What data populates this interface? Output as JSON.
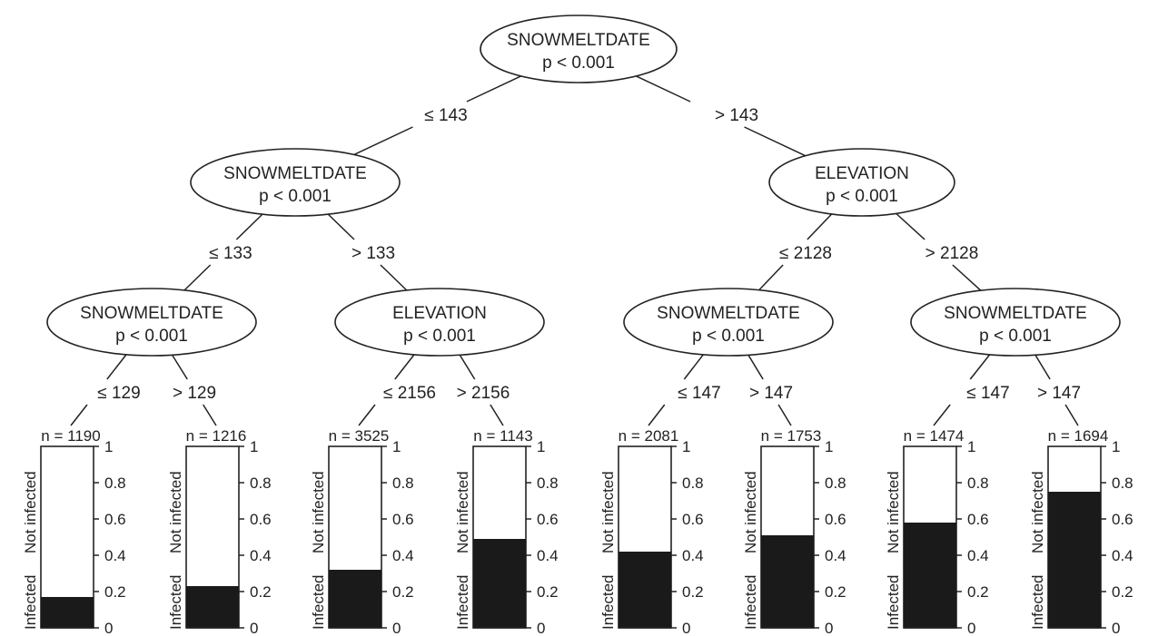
{
  "tree": {
    "nodes": [
      {
        "id": "n1",
        "variable": "SNOWMELTDATE",
        "p": "p < 0.001"
      },
      {
        "id": "n2",
        "variable": "SNOWMELTDATE",
        "p": "p < 0.001"
      },
      {
        "id": "n3",
        "variable": "ELEVATION",
        "p": "p < 0.001"
      },
      {
        "id": "n4",
        "variable": "SNOWMELTDATE",
        "p": "p < 0.001"
      },
      {
        "id": "n5",
        "variable": "ELEVATION",
        "p": "p < 0.001"
      },
      {
        "id": "n6",
        "variable": "SNOWMELTDATE",
        "p": "p < 0.001"
      },
      {
        "id": "n7",
        "variable": "SNOWMELTDATE",
        "p": "p < 0.001"
      }
    ],
    "edges": [
      {
        "from": "n1",
        "to": "n2",
        "label": "≤ 143"
      },
      {
        "from": "n1",
        "to": "n3",
        "label": "> 143"
      },
      {
        "from": "n2",
        "to": "n4",
        "label": "≤ 133"
      },
      {
        "from": "n2",
        "to": "n5",
        "label": "> 133"
      },
      {
        "from": "n3",
        "to": "n6",
        "label": "≤ 2128"
      },
      {
        "from": "n3",
        "to": "n7",
        "label": "> 2128"
      },
      {
        "from": "n4",
        "to": "l1",
        "label": "≤ 129"
      },
      {
        "from": "n4",
        "to": "l2",
        "label": "> 129"
      },
      {
        "from": "n5",
        "to": "l3",
        "label": "≤ 2156"
      },
      {
        "from": "n5",
        "to": "l4",
        "label": "> 2156"
      },
      {
        "from": "n6",
        "to": "l5",
        "label": "≤ 147"
      },
      {
        "from": "n6",
        "to": "l6",
        "label": "> 147"
      },
      {
        "from": "n7",
        "to": "l7",
        "label": "≤ 147"
      },
      {
        "from": "n7",
        "to": "l8",
        "label": "> 147"
      }
    ],
    "leaves": [
      {
        "id": "l1",
        "n_label": "n = 1190",
        "infected_fraction": 0.17
      },
      {
        "id": "l2",
        "n_label": "n = 1216",
        "infected_fraction": 0.23
      },
      {
        "id": "l3",
        "n_label": "n = 3525",
        "infected_fraction": 0.32
      },
      {
        "id": "l4",
        "n_label": "n = 1143",
        "infected_fraction": 0.49
      },
      {
        "id": "l5",
        "n_label": "n = 2081",
        "infected_fraction": 0.42
      },
      {
        "id": "l6",
        "n_label": "n = 1753",
        "infected_fraction": 0.51
      },
      {
        "id": "l7",
        "n_label": "n = 1474",
        "infected_fraction": 0.58
      },
      {
        "id": "l8",
        "n_label": "n = 1694",
        "infected_fraction": 0.75
      }
    ],
    "class_labels": {
      "infected": "Infected",
      "not_infected": "Not infected"
    },
    "ticks": [
      "0",
      "0.2",
      "0.4",
      "0.6",
      "0.8",
      "1"
    ],
    "colors": {
      "infected": "#1a1a1a",
      "not_infected": "#ffffff",
      "line": "#222222"
    }
  }
}
